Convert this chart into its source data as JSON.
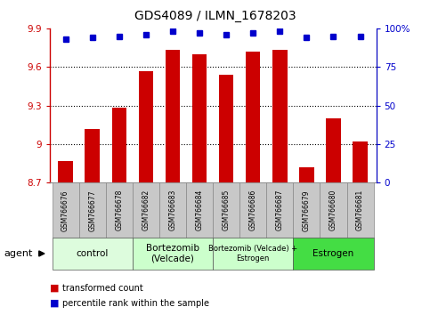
{
  "title": "GDS4089 / ILMN_1678203",
  "samples": [
    "GSM766676",
    "GSM766677",
    "GSM766678",
    "GSM766682",
    "GSM766683",
    "GSM766684",
    "GSM766685",
    "GSM766686",
    "GSM766687",
    "GSM766679",
    "GSM766680",
    "GSM766681"
  ],
  "bar_values": [
    8.87,
    9.12,
    9.28,
    9.57,
    9.73,
    9.7,
    9.54,
    9.72,
    9.73,
    8.82,
    9.2,
    9.02
  ],
  "dot_values": [
    93,
    94,
    95,
    96,
    98,
    97,
    96,
    97,
    98,
    94,
    95,
    95
  ],
  "bar_color": "#cc0000",
  "dot_color": "#0000cc",
  "ylim_left": [
    8.7,
    9.9
  ],
  "ylim_right": [
    0,
    100
  ],
  "yticks_left": [
    8.7,
    9.0,
    9.3,
    9.6,
    9.9
  ],
  "yticks_right": [
    0,
    25,
    50,
    75,
    100
  ],
  "ytick_labels_left": [
    "8.7",
    "9",
    "9.3",
    "9.6",
    "9.9"
  ],
  "ytick_labels_right": [
    "0",
    "25",
    "50",
    "75",
    "100%"
  ],
  "gridlines": [
    9.0,
    9.3,
    9.6
  ],
  "groups": [
    {
      "label": "control",
      "start": 0,
      "end": 3,
      "color": "#ddfcdd"
    },
    {
      "label": "Bortezomib\n(Velcade)",
      "start": 3,
      "end": 6,
      "color": "#ccffcc"
    },
    {
      "label": "Bortezomib (Velcade) +\nEstrogen",
      "start": 6,
      "end": 9,
      "color": "#ccffcc"
    },
    {
      "label": "Estrogen",
      "start": 9,
      "end": 12,
      "color": "#44dd44"
    }
  ],
  "legend_bar_label": "transformed count",
  "legend_dot_label": "percentile rank within the sample",
  "agent_label": "agent",
  "background_color": "#ffffff",
  "tick_label_area_color": "#c8c8c8",
  "bar_width": 0.55
}
